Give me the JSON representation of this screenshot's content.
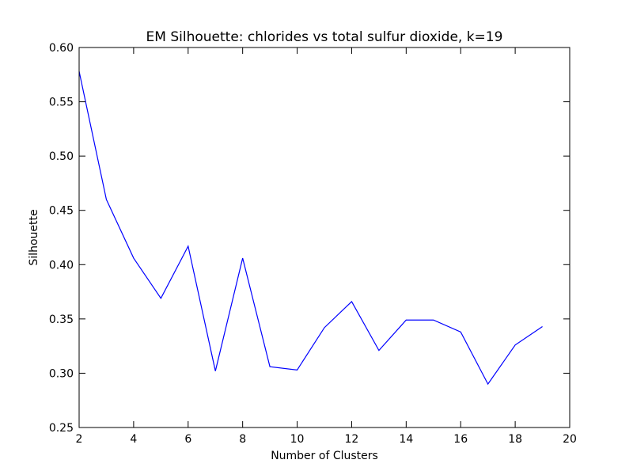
{
  "chart_data": {
    "type": "line",
    "title": "EM Silhouette: chlorides vs total sulfur dioxide, k=19",
    "xlabel": "Number of Clusters",
    "ylabel": "Silhouette",
    "xlim": [
      2,
      20
    ],
    "ylim": [
      0.25,
      0.6
    ],
    "xticks": [
      2,
      4,
      6,
      8,
      10,
      12,
      14,
      16,
      18,
      20
    ],
    "xtick_labels": [
      "2",
      "4",
      "6",
      "8",
      "10",
      "12",
      "14",
      "16",
      "18",
      "20"
    ],
    "yticks": [
      0.25,
      0.3,
      0.35,
      0.4,
      0.45,
      0.5,
      0.55,
      0.6
    ],
    "ytick_labels": [
      "0.25",
      "0.30",
      "0.35",
      "0.40",
      "0.45",
      "0.50",
      "0.55",
      "0.60"
    ],
    "grid": false,
    "series": [
      {
        "color": "#0000ff",
        "x": [
          2,
          3,
          4,
          5,
          6,
          7,
          8,
          9,
          10,
          11,
          12,
          13,
          14,
          15,
          16,
          17,
          18,
          19
        ],
        "y": [
          0.578,
          0.46,
          0.406,
          0.369,
          0.417,
          0.302,
          0.406,
          0.306,
          0.303,
          0.342,
          0.366,
          0.321,
          0.349,
          0.349,
          0.338,
          0.29,
          0.326,
          0.343
        ]
      }
    ]
  }
}
